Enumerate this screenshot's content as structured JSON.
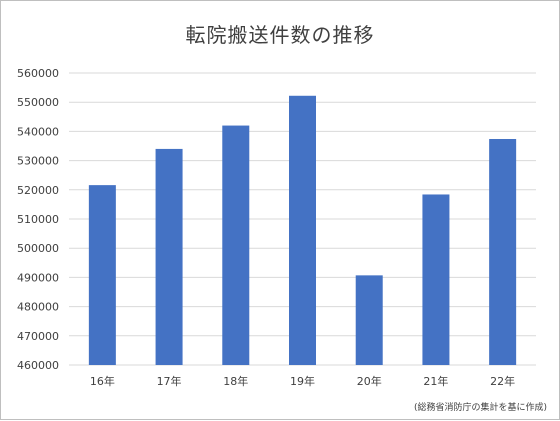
{
  "chart_data": {
    "type": "bar",
    "title": "転院搬送件数の推移",
    "categories": [
      "16年",
      "17年",
      "18年",
      "19年",
      "20年",
      "21年",
      "22年"
    ],
    "values": [
      521600,
      534000,
      542000,
      552200,
      490700,
      518400,
      537400
    ],
    "ylim": [
      460000,
      560000
    ],
    "yticks": [
      460000,
      470000,
      480000,
      490000,
      500000,
      510000,
      520000,
      530000,
      540000,
      550000,
      560000
    ],
    "xlabel": "",
    "ylabel": "",
    "grid": true,
    "legend": "none",
    "bar_color": "#4472C4",
    "source_note": "(総務省消防庁の集計を基に作成)"
  }
}
